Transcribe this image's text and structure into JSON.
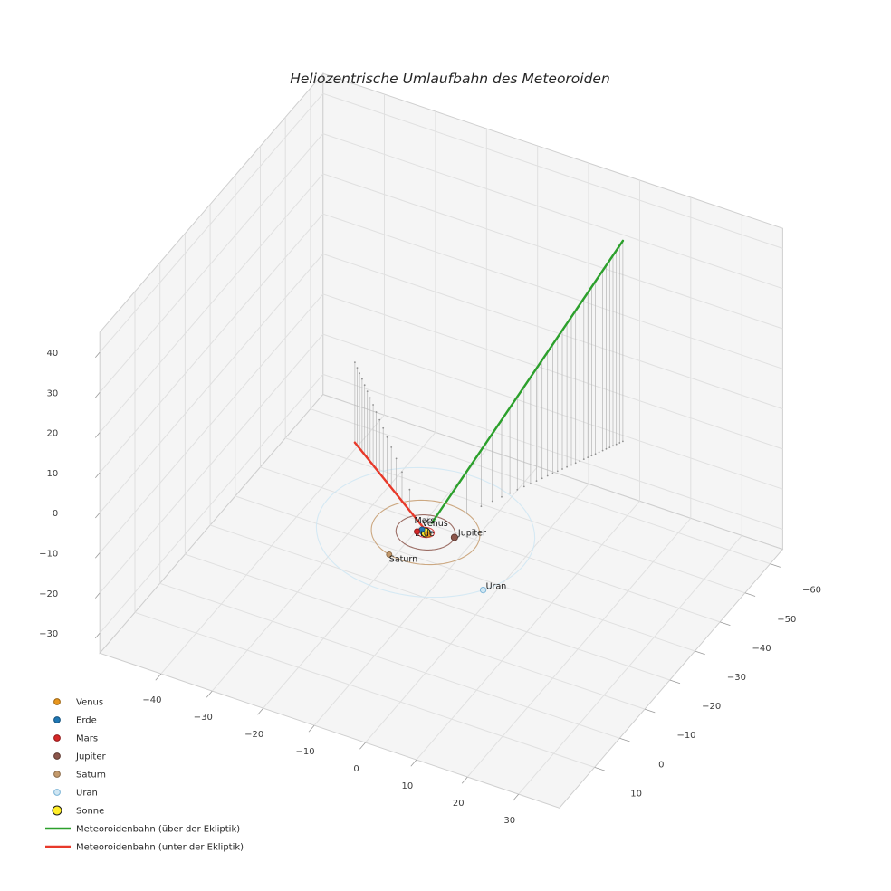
{
  "title": "Heliozentrische Umlaufbahn des Meteoroiden",
  "chart_data": {
    "type": "scatter",
    "subtype": "3d-trajectory-plot",
    "title": "Heliozentrische Umlaufbahn des Meteoroiden",
    "grid": true,
    "axes": {
      "x": {
        "range": [
          -52,
          38
        ],
        "ticks": [
          -40,
          -30,
          -20,
          -10,
          0,
          10,
          20,
          30
        ]
      },
      "y": {
        "range": [
          -65,
          24
        ],
        "ticks": [
          -60,
          -50,
          -40,
          -30,
          -20,
          -10,
          0,
          10
        ]
      },
      "z": {
        "range": [
          -35,
          45
        ],
        "ticks": [
          -30,
          -20,
          -10,
          0,
          10,
          20,
          30,
          40
        ]
      }
    },
    "sun": {
      "name": "Sonne",
      "color": "#ffed29",
      "edge": "#1a1a1a",
      "position": [
        0,
        0,
        0
      ]
    },
    "planets": [
      {
        "name": "Venus",
        "color": "#e8961e",
        "edge": "#9c6410",
        "orbit_radius": 0.72,
        "angle_deg": 20
      },
      {
        "name": "Erde",
        "color": "#1f77b4",
        "edge": "#16537e",
        "orbit_radius": 1.0,
        "angle_deg": 205
      },
      {
        "name": "Mars",
        "color": "#d62728",
        "edge": "#921b1c",
        "orbit_radius": 1.52,
        "angle_deg": 160
      },
      {
        "name": "Jupiter",
        "color": "#8c564b",
        "edge": "#5e3a32",
        "orbit_radius": 5.2,
        "angle_deg": -14
      },
      {
        "name": "Saturn",
        "color": "#c49a6c",
        "edge": "#8a6b4a",
        "orbit_radius": 9.54,
        "angle_deg": 106
      },
      {
        "name": "Uran",
        "color": "#cfe6f3",
        "edge": "#7ab3d6",
        "orbit_radius": 19.19,
        "angle_deg": 32
      }
    ],
    "trajectory": {
      "above": {
        "label": "Meteoroidenbahn (über der Ekliptik)",
        "color": "#2ca02c",
        "start": [
          0.5,
          -1.5,
          1.5
        ],
        "end": [
          18,
          -42,
          50
        ]
      },
      "below": {
        "label": "Meteoroidenbahn (unter der Ekliptik)",
        "color": "#e8392a",
        "start": [
          0.3,
          -0.3,
          -0.3
        ],
        "end": [
          -33,
          -39,
          -20
        ]
      },
      "stem_color": "#b5b5b5",
      "stem_dot_color": "#8f8f8f"
    },
    "legend": {
      "items": [
        {
          "label": "Venus",
          "type": "dot",
          "color": "#e8961e",
          "edge": "#9c6410"
        },
        {
          "label": "Erde",
          "type": "dot",
          "color": "#1f77b4",
          "edge": "#16537e"
        },
        {
          "label": "Mars",
          "type": "dot",
          "color": "#d62728",
          "edge": "#921b1c"
        },
        {
          "label": "Jupiter",
          "type": "dot",
          "color": "#8c564b",
          "edge": "#5e3a32"
        },
        {
          "label": "Saturn",
          "type": "dot",
          "color": "#c49a6c",
          "edge": "#8a6b4a"
        },
        {
          "label": "Uran",
          "type": "dot",
          "color": "#cfe6f3",
          "edge": "#7ab3d6"
        },
        {
          "label": "Sonne",
          "type": "dot_large",
          "color": "#ffed29",
          "edge": "#1a1a1a"
        },
        {
          "label": "Meteoroidenbahn (über der Ekliptik)",
          "type": "line",
          "color": "#2ca02c"
        },
        {
          "label": "Meteoroidenbahn (unter der Ekliptik)",
          "type": "line",
          "color": "#e8392a"
        }
      ]
    },
    "colors": {
      "pane_fill": "#f5f5f5",
      "pane_edge": "#cfcfcf",
      "grid_line": "#e0e0e0",
      "tick_text": "#3c3c3c",
      "label_text": "#1a1a1a"
    }
  }
}
